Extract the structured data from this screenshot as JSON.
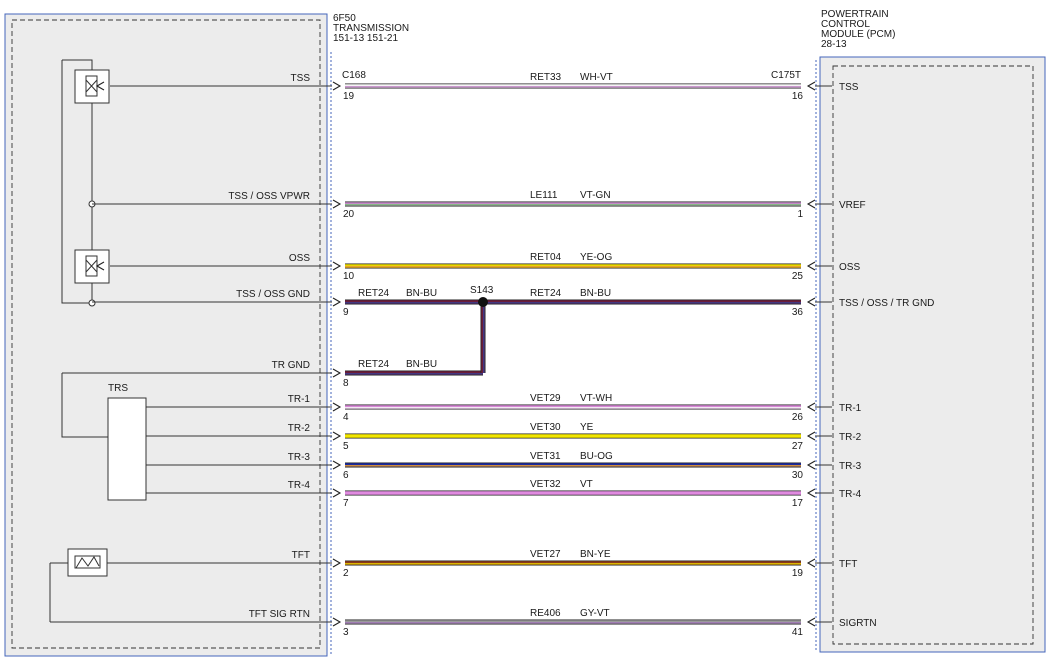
{
  "transmission": {
    "title_lines": [
      "6F50",
      "TRANSMISSION",
      "151-13  151-21"
    ]
  },
  "pcm": {
    "title_lines": [
      "POWERTRAIN",
      "CONTROL",
      "MODULE (PCM)",
      "28-13"
    ]
  },
  "left_connector": "C168",
  "right_connector": "C175T",
  "splice": "S143",
  "components": {
    "trs_label": "TRS"
  },
  "circuits": [
    {
      "left_label": "TSS",
      "left_pin": "19",
      "circuit": "RET33",
      "color_code": "WH-VT",
      "right_pin": "16",
      "pcm_label": "TSS",
      "wire_colors": [
        "#f4f4f4",
        "#c48ac8"
      ]
    },
    {
      "left_label": "TSS / OSS VPWR",
      "left_pin": "20",
      "circuit": "LE111",
      "color_code": "VT-GN",
      "right_pin": "1",
      "pcm_label": "VREF",
      "wire_colors": [
        "#c48ac8",
        "#7fbf7f"
      ]
    },
    {
      "left_label": "OSS",
      "left_pin": "10",
      "circuit": "RET04",
      "color_code": "YE-OG",
      "right_pin": "25",
      "pcm_label": "OSS",
      "wire_colors": [
        "#e8d800",
        "#e89a30"
      ]
    },
    {
      "left_label": "TSS / OSS GND",
      "left_pin": "9",
      "circuit": "RET24",
      "color_code": "BN-BU",
      "right_pin": "36",
      "pcm_label": "TSS / OSS / TR GND",
      "wire_colors": [
        "#6b1d3a",
        "#3c3c8c"
      ]
    },
    {
      "left_label": "TR GND",
      "left_pin": "8",
      "circuit": "RET24",
      "color_code": "BN-BU",
      "wire_colors": [
        "#6b1d3a",
        "#3c3c8c"
      ]
    },
    {
      "left_label": "TR-1",
      "left_pin": "4",
      "circuit": "VET29",
      "color_code": "VT-WH",
      "right_pin": "26",
      "pcm_label": "TR-1",
      "wire_colors": [
        "#d98ad9",
        "#f4f4f4"
      ]
    },
    {
      "left_label": "TR-2",
      "left_pin": "5",
      "circuit": "VET30",
      "color_code": "YE",
      "right_pin": "27",
      "pcm_label": "TR-2",
      "wire_colors": [
        "#f2e600",
        "#f2e600"
      ]
    },
    {
      "left_label": "TR-3",
      "left_pin": "6",
      "circuit": "VET31",
      "color_code": "BU-OG",
      "right_pin": "30",
      "pcm_label": "TR-3",
      "wire_colors": [
        "#1a2a9c",
        "#e89a30"
      ]
    },
    {
      "left_label": "TR-4",
      "left_pin": "7",
      "circuit": "VET32",
      "color_code": "VT",
      "right_pin": "17",
      "pcm_label": "TR-4",
      "wire_colors": [
        "#e08ae0",
        "#e08ae0"
      ]
    },
    {
      "left_label": "TFT",
      "left_pin": "2",
      "circuit": "VET27",
      "color_code": "BN-YE",
      "right_pin": "19",
      "pcm_label": "TFT",
      "wire_colors": [
        "#8b3a1a",
        "#e8c800"
      ]
    },
    {
      "left_label": "TFT SIG RTN",
      "left_pin": "3",
      "circuit": "RE406",
      "color_code": "GY-VT",
      "right_pin": "41",
      "pcm_label": "SIGRTN",
      "wire_colors": [
        "#9a9a9a",
        "#a27ab8"
      ]
    }
  ]
}
